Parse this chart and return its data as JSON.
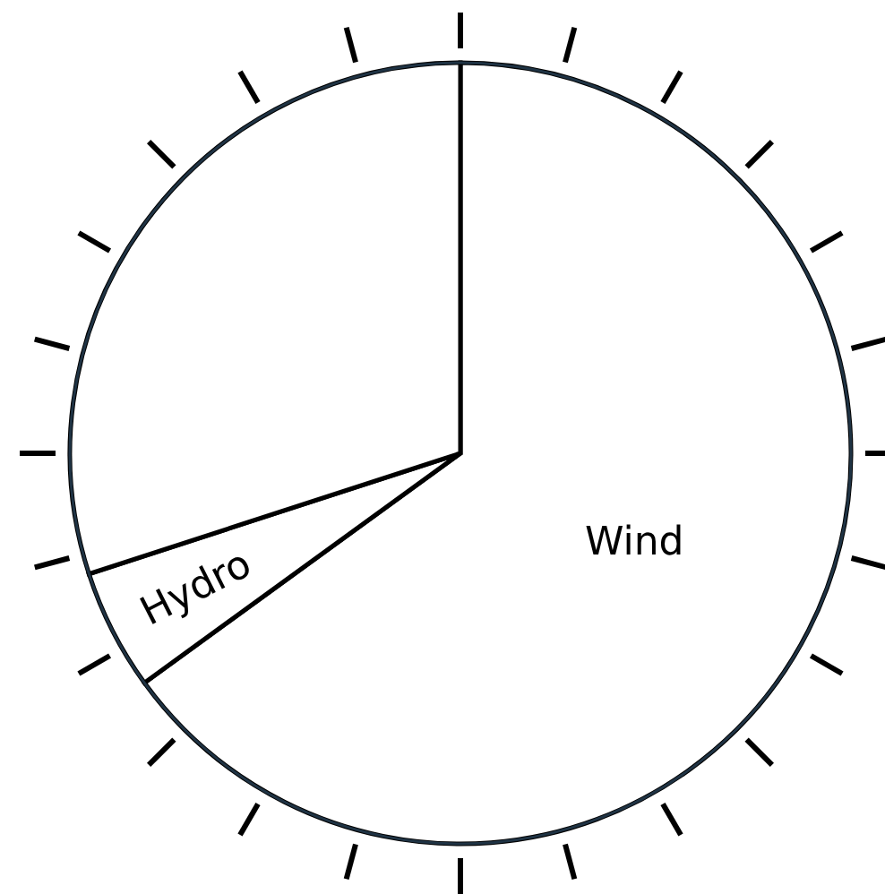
{
  "chart_data": {
    "type": "pie",
    "categories": [
      "Wind",
      "Hydro",
      null
    ],
    "values": [
      65,
      5,
      30
    ],
    "colors": [
      "#ffffff",
      "#ffffff",
      "#ffffff"
    ]
  }
}
